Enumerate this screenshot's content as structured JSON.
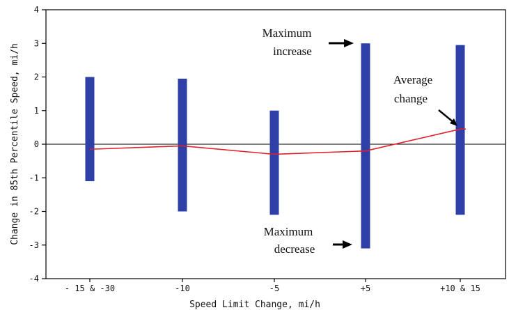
{
  "chart_data": {
    "type": "bar",
    "subtype": "floating range bars with average line",
    "xlabel": "Speed Limit Change, mi/h",
    "ylabel": "Change in 85th Percentile Speed, mi/h",
    "ylim": [
      -4,
      4
    ],
    "yticks": [
      "4",
      "3",
      "2",
      "1",
      "0",
      "-1",
      "-2",
      "-3",
      "-4"
    ],
    "ytick_values": [
      4,
      3,
      2,
      1,
      0,
      -1,
      -2,
      -3,
      -4
    ],
    "categories": [
      "- 15 & -30",
      "-10",
      "-5",
      "+5",
      "+10 & 15"
    ],
    "series": [
      {
        "name": "Maximum increase",
        "values": [
          2.0,
          1.95,
          1.0,
          3.0,
          2.95
        ]
      },
      {
        "name": "Maximum decrease",
        "values": [
          -1.1,
          -2.0,
          -2.1,
          -3.1,
          -2.1
        ]
      },
      {
        "name": "Average change",
        "values": [
          -0.15,
          -0.05,
          -0.3,
          -0.2,
          0.45
        ]
      }
    ],
    "average_line_points": [
      {
        "x": "- 15 & -30",
        "y": -0.15
      },
      {
        "x": "-10",
        "y": -0.05
      },
      {
        "x": "-5",
        "y": -0.3
      },
      {
        "x": "+5",
        "y": -0.2
      },
      {
        "x": "+10 & 15",
        "y": 0.45
      }
    ],
    "annotations": {
      "max_increase": [
        "Maximum",
        "increase"
      ],
      "average_change": [
        "Average",
        "change"
      ],
      "max_decrease": [
        "Maximum",
        "decrease"
      ]
    },
    "colors": {
      "bars": "#2e3fa8",
      "average_line": "#e0202a",
      "zero_line": "#000000",
      "axis": "#000000"
    },
    "grid": false
  }
}
